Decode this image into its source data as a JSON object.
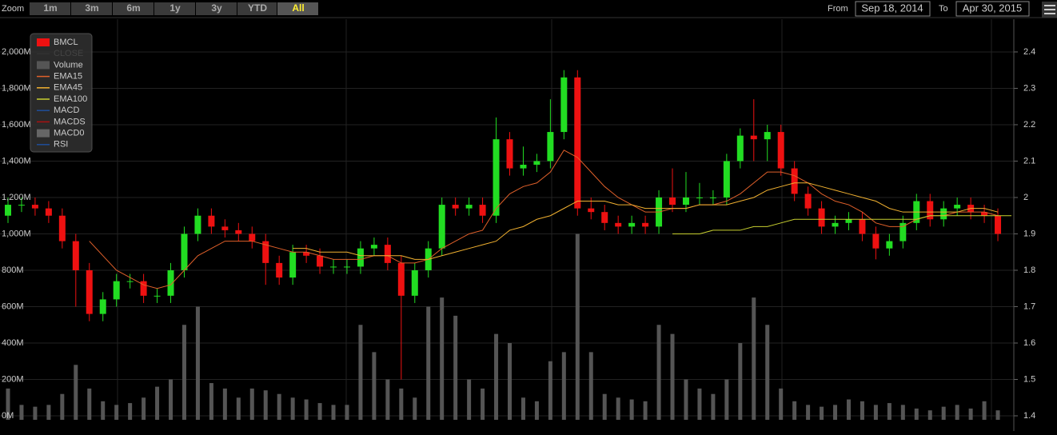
{
  "toolbar": {
    "zoom_label": "Zoom",
    "buttons": [
      "1m",
      "3m",
      "6m",
      "1y",
      "3y",
      "YTD",
      "All"
    ],
    "active": "All",
    "from_label": "From",
    "from": "Sep 18, 2014",
    "to_label": "To",
    "to": "Apr 30, 2015"
  },
  "chart_data": {
    "type": "candlestick",
    "ylim": [
      0,
      2180
    ],
    "yticks": [
      {
        "value": 0,
        "label": "0M"
      },
      {
        "value": 200,
        "label": "200M"
      },
      {
        "value": 400,
        "label": "400M"
      },
      {
        "value": 600,
        "label": "600M"
      },
      {
        "value": 800,
        "label": "800M"
      },
      {
        "value": 1000,
        "label": "1,000M"
      },
      {
        "value": 1200,
        "label": "1,200M"
      },
      {
        "value": 1400,
        "label": "1,400M"
      },
      {
        "value": 1600,
        "label": "1,600M"
      },
      {
        "value": 1800,
        "label": "1,800M"
      },
      {
        "value": 2000,
        "label": "2,000M"
      }
    ],
    "y2lim": [
      1.4,
      2.49
    ],
    "y2ticks": [
      1.4,
      1.5,
      1.6,
      1.7,
      1.8,
      1.9,
      2,
      2.1,
      2.2,
      2.3,
      2.4
    ],
    "grid": true,
    "series": [
      {
        "name": "BMCL",
        "axis": "y2",
        "up_color": "#22dd22",
        "down_color": "#ee1111",
        "open": [
          1.95,
          1.98,
          1.98,
          1.97,
          1.95,
          1.88,
          1.8,
          1.68,
          1.72,
          1.77,
          1.77,
          1.73,
          1.73,
          1.8,
          1.9,
          1.95,
          1.92,
          1.91,
          1.9,
          1.88,
          1.82,
          1.78,
          1.85,
          1.84,
          1.81,
          1.81,
          1.81,
          1.86,
          1.87,
          1.82,
          1.73,
          1.8,
          1.86,
          1.98,
          1.97,
          1.98,
          1.95,
          2.16,
          2.08,
          2.09,
          2.1,
          2.18,
          2.33,
          1.97,
          1.96,
          1.93,
          1.92,
          1.93,
          1.92,
          2.0,
          1.98,
          2.0,
          2.0,
          2.0,
          2.1,
          2.17,
          2.16,
          2.18,
          2.08,
          2.01,
          1.97,
          1.92,
          1.93,
          1.94,
          1.9,
          1.86,
          1.88,
          1.93,
          1.99,
          1.94,
          1.97,
          1.98,
          1.96,
          1.95
        ],
        "high": [
          2.0,
          2.0,
          2.0,
          1.99,
          1.97,
          1.9,
          1.82,
          1.74,
          1.79,
          1.79,
          1.79,
          1.75,
          1.82,
          1.92,
          1.97,
          1.97,
          1.94,
          1.93,
          1.92,
          1.9,
          1.84,
          1.87,
          1.87,
          1.86,
          1.83,
          1.83,
          1.88,
          1.89,
          1.89,
          1.84,
          1.82,
          1.88,
          2.0,
          2.0,
          2.0,
          2.0,
          2.22,
          2.18,
          2.14,
          2.12,
          2.27,
          2.35,
          2.35,
          2.0,
          1.98,
          1.95,
          1.95,
          1.95,
          2.02,
          2.08,
          2.07,
          2.04,
          2.02,
          2.12,
          2.19,
          2.27,
          2.2,
          2.2,
          2.1,
          2.03,
          1.99,
          1.95,
          1.96,
          1.96,
          1.92,
          1.9,
          1.95,
          2.01,
          2.01,
          1.99,
          2.0,
          2.0,
          1.98,
          1.97
        ],
        "low": [
          1.93,
          1.96,
          1.95,
          1.93,
          1.86,
          1.7,
          1.66,
          1.66,
          1.7,
          1.75,
          1.71,
          1.71,
          1.71,
          1.78,
          1.88,
          1.9,
          1.89,
          1.88,
          1.86,
          1.76,
          1.76,
          1.76,
          1.82,
          1.79,
          1.79,
          1.79,
          1.79,
          1.84,
          1.8,
          1.5,
          1.71,
          1.78,
          1.84,
          1.95,
          1.95,
          1.93,
          1.93,
          2.06,
          2.06,
          2.07,
          2.08,
          2.16,
          1.95,
          1.94,
          1.91,
          1.9,
          1.9,
          1.9,
          1.9,
          1.96,
          1.96,
          1.98,
          1.98,
          1.98,
          2.08,
          2.1,
          2.1,
          2.06,
          1.99,
          1.95,
          1.9,
          1.9,
          1.91,
          1.88,
          1.83,
          1.84,
          1.86,
          1.91,
          1.92,
          1.92,
          1.95,
          1.94,
          1.93,
          1.88
        ],
        "close": [
          1.98,
          1.98,
          1.97,
          1.95,
          1.88,
          1.8,
          1.68,
          1.72,
          1.77,
          1.77,
          1.73,
          1.73,
          1.8,
          1.9,
          1.95,
          1.92,
          1.91,
          1.9,
          1.88,
          1.82,
          1.78,
          1.85,
          1.84,
          1.81,
          1.81,
          1.81,
          1.86,
          1.87,
          1.82,
          1.73,
          1.8,
          1.86,
          1.98,
          1.97,
          1.98,
          1.95,
          2.16,
          2.08,
          2.09,
          2.1,
          2.18,
          2.33,
          1.97,
          1.96,
          1.93,
          1.92,
          1.93,
          1.92,
          2.0,
          1.98,
          2.0,
          2.0,
          2.0,
          2.1,
          2.17,
          2.16,
          2.18,
          2.08,
          2.01,
          1.97,
          1.92,
          1.93,
          1.94,
          1.9,
          1.86,
          1.88,
          1.93,
          1.99,
          1.94,
          1.97,
          1.98,
          1.96,
          1.95,
          1.9
        ]
      },
      {
        "name": "Volume",
        "color": "#555555",
        "values": [
          150,
          60,
          50,
          60,
          120,
          280,
          150,
          80,
          60,
          70,
          100,
          160,
          200,
          500,
          600,
          180,
          150,
          100,
          150,
          140,
          120,
          100,
          90,
          70,
          60,
          60,
          500,
          350,
          200,
          150,
          100,
          600,
          650,
          550,
          200,
          150,
          450,
          400,
          100,
          80,
          300,
          350,
          1000,
          350,
          120,
          100,
          90,
          80,
          500,
          450,
          200,
          150,
          120,
          200,
          400,
          650,
          500,
          150,
          80,
          60,
          50,
          60,
          90,
          80,
          60,
          70,
          60,
          40,
          30,
          50,
          60,
          40,
          80,
          30
        ]
      },
      {
        "name": "EMA15",
        "color": "#e0602a",
        "axis": "y2",
        "values": [
          null,
          null,
          null,
          null,
          null,
          null,
          1.88,
          1.84,
          1.8,
          1.78,
          1.76,
          1.75,
          1.76,
          1.8,
          1.84,
          1.86,
          1.88,
          1.88,
          1.88,
          1.87,
          1.86,
          1.85,
          1.85,
          1.84,
          1.83,
          1.83,
          1.83,
          1.84,
          1.84,
          1.82,
          1.82,
          1.83,
          1.86,
          1.88,
          1.9,
          1.91,
          1.97,
          2.01,
          2.03,
          2.04,
          2.07,
          2.13,
          2.11,
          2.07,
          2.03,
          2.0,
          1.98,
          1.96,
          1.96,
          1.97,
          1.97,
          1.98,
          1.98,
          1.99,
          2.01,
          2.04,
          2.07,
          2.07,
          2.06,
          2.04,
          2.01,
          1.99,
          1.98,
          1.96,
          1.93,
          1.92,
          1.92,
          1.94,
          1.95,
          1.95,
          1.96,
          1.96,
          1.96,
          1.95
        ]
      },
      {
        "name": "EMA45",
        "color": "#f0b030",
        "axis": "y2",
        "values": [
          null,
          null,
          null,
          null,
          null,
          null,
          null,
          null,
          null,
          null,
          null,
          null,
          null,
          null,
          null,
          null,
          null,
          null,
          null,
          null,
          null,
          1.86,
          1.86,
          1.85,
          1.85,
          1.85,
          1.84,
          1.84,
          1.84,
          1.84,
          1.83,
          1.83,
          1.84,
          1.85,
          1.86,
          1.87,
          1.88,
          1.91,
          1.92,
          1.94,
          1.95,
          1.97,
          1.99,
          1.99,
          1.99,
          1.98,
          1.98,
          1.97,
          1.97,
          1.97,
          1.97,
          1.98,
          1.98,
          1.98,
          1.99,
          2.0,
          2.02,
          2.03,
          2.04,
          2.04,
          2.03,
          2.02,
          2.01,
          2.0,
          1.99,
          1.97,
          1.96,
          1.96,
          1.96,
          1.96,
          1.96,
          1.97,
          1.97,
          1.96
        ]
      },
      {
        "name": "EMA100",
        "color": "#c8d030",
        "axis": "y2",
        "values": [
          null,
          null,
          null,
          null,
          null,
          null,
          null,
          null,
          null,
          null,
          null,
          null,
          null,
          null,
          null,
          null,
          null,
          null,
          null,
          null,
          null,
          null,
          null,
          null,
          null,
          null,
          null,
          null,
          null,
          null,
          null,
          null,
          null,
          null,
          null,
          null,
          null,
          null,
          null,
          null,
          null,
          null,
          null,
          null,
          null,
          null,
          null,
          null,
          null,
          1.9,
          1.9,
          1.9,
          1.91,
          1.91,
          1.91,
          1.92,
          1.92,
          1.93,
          1.94,
          1.94,
          1.94,
          1.94,
          1.94,
          1.94,
          1.94,
          1.94,
          1.94,
          1.94,
          1.95,
          1.95,
          1.95,
          1.95,
          1.95,
          1.95,
          1.95
        ]
      }
    ],
    "legend_extra": [
      {
        "name": "CLOSE",
        "color": "#333333"
      },
      {
        "name": "MACD",
        "color": "#1f4e9a"
      },
      {
        "name": "MACDS",
        "color": "#aa1111"
      },
      {
        "name": "MACD0",
        "color": "#666666"
      },
      {
        "name": "RSI",
        "color": "#1f4e9a"
      }
    ]
  }
}
